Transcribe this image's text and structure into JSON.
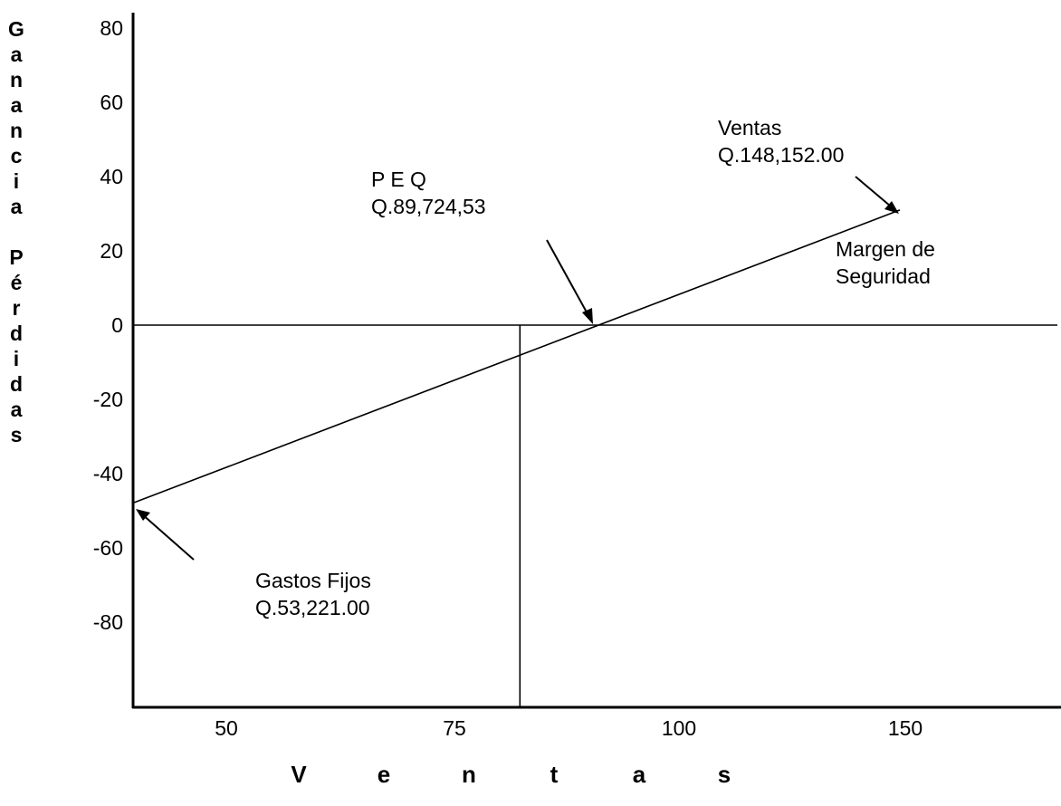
{
  "chart_data": {
    "type": "line",
    "ylabel": "Ganancia Pérdidas",
    "xlabel": "Ventas",
    "y_ticks": [
      "80",
      "60",
      "40",
      "20",
      "0",
      "-20",
      "-40",
      "-60",
      "-80"
    ],
    "x_ticks": [
      "50",
      "75",
      "100",
      "150"
    ],
    "series": [
      {
        "x": [
          40,
          138
        ],
        "y": [
          -48,
          31
        ]
      }
    ],
    "reference_lines": [
      {
        "orientation": "horizontal",
        "y": 0
      },
      {
        "orientation": "vertical",
        "x": 89.5
      }
    ],
    "annotations": [
      {
        "lines": [
          "Ventas",
          "Q.148,152.00"
        ]
      },
      {
        "lines": [
          "P E Q",
          "Q.89,724,53"
        ]
      },
      {
        "lines": [
          "Margen de",
          "Seguridad"
        ]
      },
      {
        "lines": [
          "Gastos Fijos",
          "Q.53,221.00"
        ]
      }
    ],
    "grid": false
  }
}
